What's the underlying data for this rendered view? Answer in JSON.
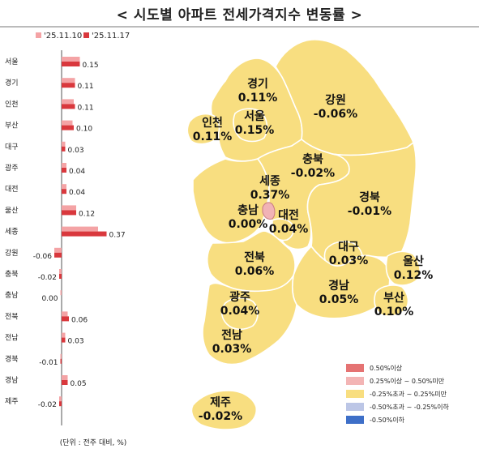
{
  "title": "< 시도별 아파트 전세가격지수 변동률 >",
  "unit_note": "(단위 : 전주 대비, %)",
  "colors": {
    "prev_series": "#f4a3a5",
    "curr_series": "#d9383d",
    "province_fill": "#f8de80",
    "province_stroke": "#ffffff",
    "sejong_fill": "#f1b3b6",
    "legend": [
      "#e57373",
      "#f3b5b5",
      "#f8de80",
      "#bcc6e6",
      "#3e6fc8"
    ]
  },
  "chart_data": {
    "type": "bar",
    "orientation": "horizontal",
    "categories": [
      "서울",
      "경기",
      "인천",
      "부산",
      "대구",
      "광주",
      "대전",
      "울산",
      "세종",
      "강원",
      "충북",
      "충남",
      "전북",
      "전남",
      "경북",
      "경남",
      "제주"
    ],
    "series": [
      {
        "name": "'25.11.10",
        "values": [
          0.15,
          0.11,
          0.1,
          0.09,
          0.03,
          0.04,
          0.04,
          0.12,
          0.3,
          -0.06,
          -0.02,
          -0.01,
          0.05,
          0.03,
          -0.01,
          0.05,
          -0.02
        ]
      },
      {
        "name": "'25.11.17",
        "values": [
          0.15,
          0.11,
          0.11,
          0.1,
          0.03,
          0.04,
          0.04,
          0.12,
          0.37,
          -0.06,
          -0.02,
          0.0,
          0.06,
          0.03,
          -0.01,
          0.05,
          -0.02
        ]
      }
    ],
    "value_labels": [
      "0.15",
      "0.11",
      "0.11",
      "0.10",
      "0.03",
      "0.04",
      "0.04",
      "0.12",
      "0.37",
      "-0.06",
      "-0.02",
      "0.00",
      "0.06",
      "0.03",
      "-0.01",
      "0.05",
      "-0.02"
    ],
    "xlim": [
      -0.08,
      0.4
    ],
    "legend_position": "top-left",
    "grid": false
  },
  "map": {
    "regions": [
      {
        "name": "경기",
        "value": "0.11%"
      },
      {
        "name": "강원",
        "value": "-0.06%"
      },
      {
        "name": "인천",
        "value": "0.11%"
      },
      {
        "name": "서울",
        "value": "0.15%"
      },
      {
        "name": "충북",
        "value": "-0.02%"
      },
      {
        "name": "세종",
        "value": "0.37%"
      },
      {
        "name": "충남",
        "value": "0.00%"
      },
      {
        "name": "대전",
        "value": "0.04%"
      },
      {
        "name": "경북",
        "value": "-0.01%"
      },
      {
        "name": "전북",
        "value": "0.06%"
      },
      {
        "name": "대구",
        "value": "0.03%"
      },
      {
        "name": "울산",
        "value": "0.12%"
      },
      {
        "name": "광주",
        "value": "0.04%"
      },
      {
        "name": "경남",
        "value": "0.05%"
      },
      {
        "name": "부산",
        "value": "0.10%"
      },
      {
        "name": "전남",
        "value": "0.03%"
      },
      {
        "name": "제주",
        "value": "-0.02%"
      }
    ],
    "legend": [
      "0.50%이상",
      "0.25%이상 ~ 0.50%미만",
      "-0.25%초과 ~ 0.25%미만",
      "-0.50%초과 ~ -0.25%이하",
      "-0.50%이하"
    ]
  }
}
